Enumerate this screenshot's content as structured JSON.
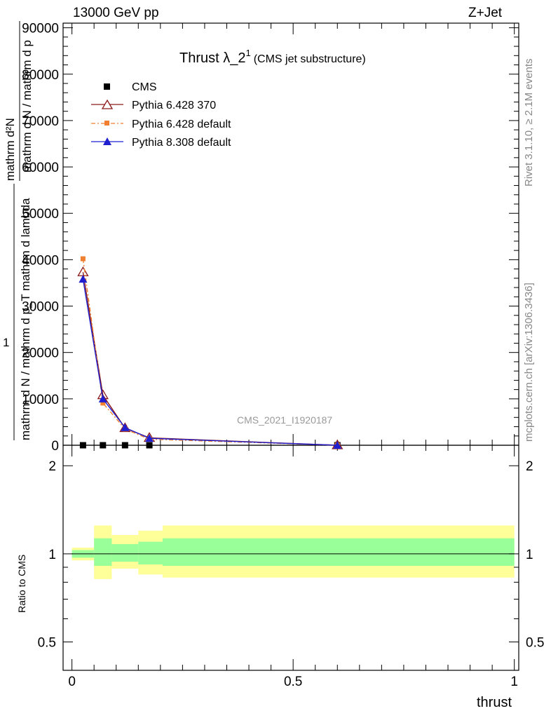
{
  "header": {
    "left": "13000 GeV pp",
    "right": "Z+Jet"
  },
  "side": {
    "rivet": "Rivet 3.1.10, ≥ 2.1M events",
    "mcplots": "mcplots.cern.ch [arXiv:1306.3436]"
  },
  "plot": {
    "title_main": "Thrust λ_2",
    "title_sup": "1",
    "title_sub": "(CMS jet substructure)",
    "watermark": "CMS_2021_I1920187",
    "ylabel_main_top": "mathrm d²N",
    "ylabel_main_bottom": "mathrm d N / mathrm d p_T mathrm d lambda",
    "ylabel_main_bottom2": "mathrm d N / mathrm d p",
    "ylabel_one": "1",
    "ylabel_ratio": "Ratio to CMS",
    "xlabel": "thrust"
  },
  "chart_data": {
    "type": "line",
    "x_range": [
      -0.02,
      1.01
    ],
    "main_y_range": [
      0,
      91000
    ],
    "main_y_ticks": [
      0,
      10000,
      20000,
      30000,
      40000,
      50000,
      60000,
      70000,
      80000,
      90000
    ],
    "main_y_tick_labels": [
      "0",
      "10000",
      "20000",
      "30000",
      "40000",
      "50000",
      "60000",
      "70000",
      "80000",
      "90000"
    ],
    "ratio_y_range": [
      0.4,
      2.35
    ],
    "ratio_y_log": true,
    "ratio_y_ticks": [
      0.5,
      1,
      2
    ],
    "ratio_y_tick_labels": [
      "0.5",
      "1",
      "2"
    ],
    "x_ticks": [
      0,
      0.5,
      1
    ],
    "x_tick_labels": [
      "0",
      "0.5",
      "1"
    ],
    "series": [
      {
        "name": "CMS",
        "marker": "square",
        "color": "#000000",
        "x": [
          0.025,
          0.07,
          0.12,
          0.175,
          0.6
        ],
        "y": [
          0,
          0,
          0,
          0,
          0
        ]
      },
      {
        "name": "Pythia 6.428 370",
        "marker": "open-triangle",
        "color": "#8b1a1a",
        "x": [
          0.025,
          0.07,
          0.12,
          0.175,
          0.6
        ],
        "y": [
          37300,
          10800,
          3700,
          1600,
          0
        ]
      },
      {
        "name": "Pythia 6.428 default",
        "marker": "square-small",
        "color": "#f08030",
        "dash": true,
        "x": [
          0.025,
          0.07,
          0.12,
          0.175,
          0.6
        ],
        "y": [
          40200,
          9100,
          3500,
          1300,
          0
        ]
      },
      {
        "name": "Pythia 8.308 default",
        "marker": "filled-triangle",
        "color": "#1f1fcf",
        "x": [
          0.025,
          0.07,
          0.12,
          0.175,
          0.6
        ],
        "y": [
          35800,
          10000,
          3800,
          1500,
          0
        ]
      }
    ],
    "ratio_bands": [
      {
        "x0": 0.0,
        "x1": 0.05,
        "yellow": [
          0.95,
          1.05
        ],
        "green": [
          0.97,
          1.03
        ]
      },
      {
        "x0": 0.05,
        "x1": 0.09,
        "yellow": [
          0.82,
          1.25
        ],
        "green": [
          0.91,
          1.13
        ]
      },
      {
        "x0": 0.09,
        "x1": 0.15,
        "yellow": [
          0.89,
          1.16
        ],
        "green": [
          0.94,
          1.08
        ]
      },
      {
        "x0": 0.15,
        "x1": 0.205,
        "yellow": [
          0.85,
          1.2
        ],
        "green": [
          0.92,
          1.1
        ]
      },
      {
        "x0": 0.205,
        "x1": 1.0,
        "yellow": [
          0.83,
          1.25
        ],
        "green": [
          0.91,
          1.13
        ]
      }
    ],
    "ratio_line": 1,
    "legend_placement": "top-left",
    "grid": false
  },
  "colors": {
    "yellow_band": "#ffff99",
    "green_band": "#99ff99",
    "frame": "#000000"
  }
}
